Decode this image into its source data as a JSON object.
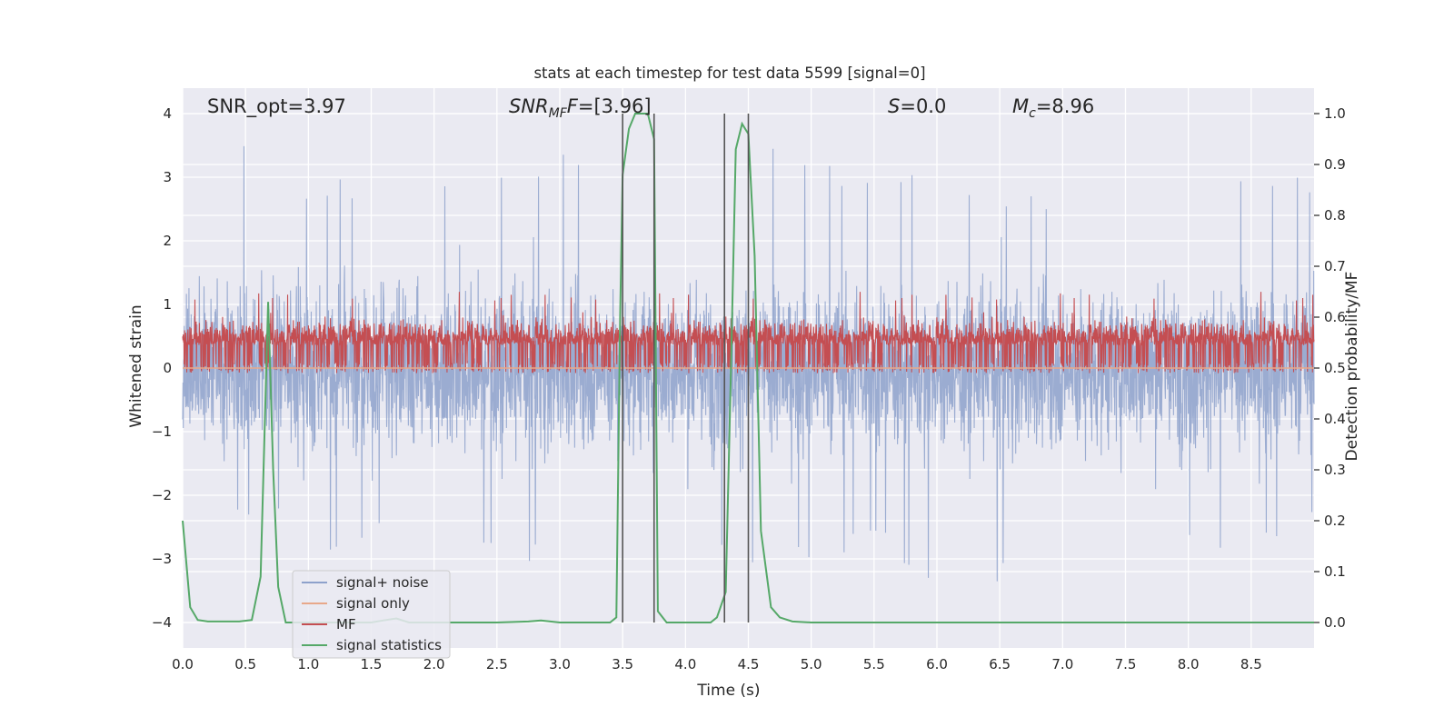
{
  "chart_data": {
    "type": "line",
    "title": "stats at each timestep for test data 5599 [signal=0]",
    "xlabel": "Time (s)",
    "ylabel": "Whitened strain",
    "ylabel_right": "Detection probability/MF",
    "xlim": [
      0.0,
      9.0
    ],
    "ylim": [
      -4.4,
      4.4
    ],
    "ylim_right": [
      -0.05,
      1.05
    ],
    "x_ticks": [
      0.0,
      0.5,
      1.0,
      1.5,
      2.0,
      2.5,
      3.0,
      3.5,
      4.0,
      4.5,
      5.0,
      5.5,
      6.0,
      6.5,
      7.0,
      7.5,
      8.0,
      8.5
    ],
    "x_tick_labels": [
      "0.0",
      "0.5",
      "1.0",
      "1.5",
      "2.0",
      "2.5",
      "3.0",
      "3.5",
      "4.0",
      "4.5",
      "5.0",
      "5.5",
      "6.0",
      "6.5",
      "7.0",
      "7.5",
      "8.0",
      "8.5"
    ],
    "y_ticks": [
      -4,
      -3,
      -2,
      -1,
      0,
      1,
      2,
      3,
      4
    ],
    "y_tick_labels": [
      "−4",
      "−3",
      "−2",
      "−1",
      "0",
      "1",
      "2",
      "3",
      "4"
    ],
    "y_ticks_right": [
      0.0,
      0.1,
      0.2,
      0.3,
      0.4,
      0.5,
      0.6,
      0.7,
      0.8,
      0.9,
      1.0
    ],
    "y_tick_labels_right": [
      "0.0",
      "0.1",
      "0.2",
      "0.3",
      "0.4",
      "0.5",
      "0.6",
      "0.7",
      "0.8",
      "0.9",
      "1.0"
    ],
    "grid": true,
    "legend_position": "lower-left",
    "annotations": {
      "snr_opt": "SNR_opt=3.97",
      "snr_mf_symbol": "SNR",
      "snr_mf_sub": "MF",
      "snr_mf_value": "=[3.96]",
      "s_symbol": "S",
      "s_value": "=0.0",
      "mc_symbol": "M",
      "mc_sub": "c",
      "mc_value": "=8.96"
    },
    "series": [
      {
        "name": "signal+ noise",
        "color": "#8da1cb",
        "axis": "left",
        "description_envelope": {
          "x": [
            0.0,
            0.3,
            0.33,
            0.7,
            1.13,
            1.5,
            3.25,
            3.5,
            4.5,
            5.5,
            6.0,
            7.12,
            8.0,
            8.5,
            9.0
          ],
          "upper": [
            2.4,
            2.7,
            4.0,
            2.9,
            3.2,
            2.6,
            3.7,
            2.9,
            3.6,
            3.2,
            3.0,
            2.8,
            3.0,
            3.0,
            3.2
          ],
          "lower": [
            -2.3,
            -2.6,
            -2.2,
            -2.5,
            -2.9,
            -2.8,
            -3.4,
            -2.6,
            -3.2,
            -2.9,
            -3.4,
            -3.8,
            -2.9,
            -3.0,
            -2.3
          ]
        }
      },
      {
        "name": "signal only",
        "color": "#e8a88a",
        "axis": "left",
        "x": [
          0.0,
          9.0
        ],
        "y": [
          0.0,
          0.0
        ]
      },
      {
        "name": "MF",
        "color": "#c44e52",
        "axis": "right",
        "baseline": 0.5,
        "range": [
          0.49,
          0.65
        ]
      },
      {
        "name": "signal statistics",
        "color": "#55a868",
        "axis": "right",
        "x": [
          0.0,
          0.06,
          0.12,
          0.2,
          0.3,
          0.45,
          0.55,
          0.62,
          0.68,
          0.72,
          0.76,
          0.82,
          0.9,
          1.5,
          1.62,
          1.7,
          1.8,
          2.5,
          2.75,
          2.85,
          3.0,
          3.4,
          3.45,
          3.48,
          3.5,
          3.55,
          3.6,
          3.7,
          3.75,
          3.78,
          3.85,
          3.95,
          4.2,
          4.25,
          4.32,
          4.36,
          4.4,
          4.45,
          4.5,
          4.55,
          4.6,
          4.68,
          4.75,
          4.85,
          5.0,
          6.0,
          7.0,
          8.0,
          9.0
        ],
        "y": [
          0.2,
          0.03,
          0.005,
          0.002,
          0.002,
          0.002,
          0.005,
          0.09,
          0.63,
          0.3,
          0.07,
          0.0,
          0.0,
          0.0,
          0.005,
          0.008,
          0.0,
          0.0,
          0.002,
          0.004,
          0.0,
          0.0,
          0.01,
          0.6,
          0.88,
          0.97,
          1.0,
          1.0,
          0.95,
          0.022,
          0.0,
          0.0,
          0.0,
          0.01,
          0.06,
          0.48,
          0.93,
          0.98,
          0.96,
          0.72,
          0.18,
          0.03,
          0.01,
          0.002,
          0.0,
          0.0,
          0.0,
          0.0,
          0.0
        ]
      }
    ],
    "vertical_markers_x": [
      3.5,
      3.75,
      4.31,
      4.5
    ]
  }
}
